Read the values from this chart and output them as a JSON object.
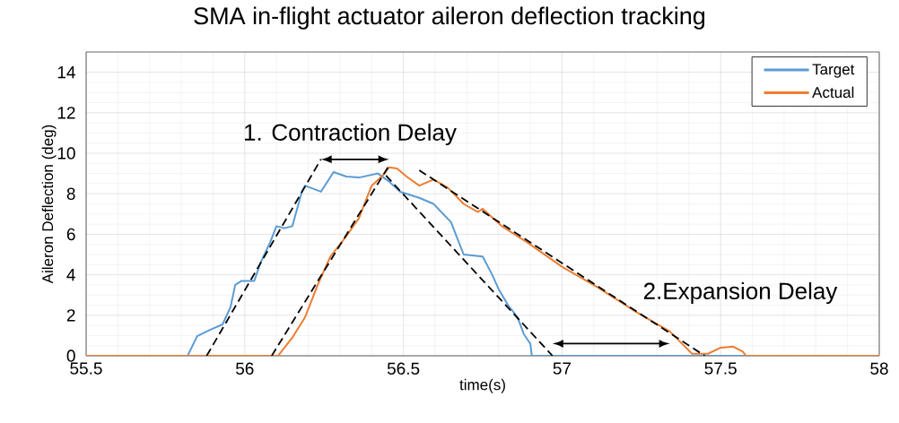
{
  "chart_data": {
    "type": "line",
    "title": "SMA in-flight actuator aileron deflection tracking",
    "xlabel": "time(s)",
    "ylabel": "Aileron Deflection (deg)",
    "xlim": [
      55.5,
      58
    ],
    "ylim": [
      0,
      15
    ],
    "xticks": [
      55.5,
      56,
      56.5,
      57,
      57.5,
      58
    ],
    "yticks": [
      0,
      2,
      4,
      6,
      8,
      10,
      12,
      14
    ],
    "grid": true,
    "legend": "top right",
    "annotations": [
      "1. Contraction Delay",
      "2.Expansion Delay"
    ],
    "series": [
      {
        "name": "Target",
        "color": "#5b9bd5",
        "line_style": "solid",
        "x": [
          55.5,
          55.82,
          55.85,
          55.89,
          55.93,
          55.955,
          55.97,
          55.99,
          56.03,
          56.05,
          56.08,
          56.1,
          56.125,
          56.15,
          56.18,
          56.19,
          56.24,
          56.28,
          56.32,
          56.36,
          56.42,
          56.455,
          56.49,
          56.55,
          56.595,
          56.65,
          56.69,
          56.75,
          56.78,
          56.8,
          56.83,
          56.86,
          56.88,
          56.9,
          56.905,
          58
        ],
        "values": [
          0,
          0,
          0.97,
          1.28,
          1.55,
          2.4,
          3.5,
          3.7,
          3.7,
          4.6,
          5.6,
          6.4,
          6.3,
          6.4,
          8.1,
          8.4,
          8.1,
          9.07,
          8.85,
          8.8,
          9.0,
          8.6,
          8.1,
          7.8,
          7.5,
          6.6,
          5.0,
          4.9,
          4.0,
          3.3,
          2.5,
          1.9,
          1.06,
          0.6,
          0,
          0
        ]
      },
      {
        "name": "Actual",
        "color": "#ed7d31",
        "line_style": "solid",
        "x": [
          55.5,
          56.105,
          56.15,
          56.19,
          56.23,
          56.27,
          56.32,
          56.36,
          56.4,
          56.435,
          56.455,
          56.48,
          56.51,
          56.55,
          56.595,
          56.64,
          56.69,
          56.735,
          56.75,
          56.81,
          56.89,
          57.0,
          57.11,
          57.23,
          57.34,
          57.41,
          57.46,
          57.5,
          57.54,
          57.57,
          57.58,
          58
        ],
        "values": [
          0,
          0,
          0.9,
          1.9,
          3.5,
          4.9,
          5.9,
          6.8,
          8.4,
          8.9,
          9.3,
          9.25,
          8.85,
          8.4,
          8.7,
          8.3,
          7.5,
          7.1,
          7.26,
          6.4,
          5.6,
          4.4,
          3.4,
          2.2,
          1.2,
          0.1,
          0.1,
          0.4,
          0.45,
          0.2,
          0,
          0
        ]
      },
      {
        "color": "#000000",
        "line_style": "dashed",
        "x": [
          55.88,
          56.24
        ],
        "values": [
          0,
          9.7
        ]
      },
      {
        "color": "#000000",
        "line_style": "dashed",
        "x": [
          56.085,
          56.455
        ],
        "values": [
          0,
          9.4
        ]
      },
      {
        "color": "#000000",
        "line_style": "dashed",
        "x": [
          56.445,
          56.97
        ],
        "values": [
          8.9,
          0
        ]
      },
      {
        "color": "#000000",
        "line_style": "dashed",
        "x": [
          56.55,
          57.45
        ],
        "values": [
          9.16,
          0
        ]
      }
    ]
  }
}
